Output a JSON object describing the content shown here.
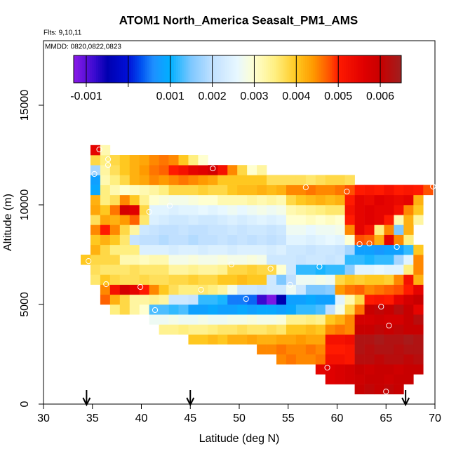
{
  "chart_data": {
    "type": "heatmap",
    "title": "ATOM1 North_America Seasalt_PM1_AMS",
    "subtitle": "Flts: 9,10,11",
    "annotation": "MMDD: 0820,0822,0823",
    "xlabel": "Latitude (deg N)",
    "ylabel": "Altitude (m)",
    "xlim": [
      30,
      70
    ],
    "ylim": [
      0,
      18240
    ],
    "xticks": [
      30,
      35,
      40,
      45,
      50,
      55,
      60,
      65,
      70
    ],
    "yticks": [
      0,
      5000,
      10000,
      15000
    ],
    "xbins": [
      33.8,
      34.8,
      35.8,
      36.8,
      37.8,
      38.8,
      39.8,
      40.8,
      41.8,
      42.8,
      43.8,
      44.8,
      45.8,
      46.8,
      47.8,
      48.8,
      49.8,
      50.8,
      51.8,
      52.8,
      53.8,
      54.8,
      55.8,
      56.8,
      57.8,
      58.8,
      59.8,
      60.8,
      61.8,
      62.8,
      63.8,
      64.8,
      65.8,
      66.8,
      67.8,
      68.8,
      69.8
    ],
    "ybins": [
      500,
      1000,
      1500,
      2000,
      2500,
      3000,
      3500,
      4000,
      4500,
      5000,
      5500,
      6000,
      6500,
      7000,
      7500,
      8000,
      8500,
      9000,
      9500,
      10000,
      10500,
      11000,
      11500,
      12000,
      12500,
      13000
    ],
    "z": [
      [
        null,
        null,
        null,
        null,
        null,
        null,
        null,
        null,
        null,
        null,
        null,
        null,
        null,
        null,
        null,
        null,
        null,
        null,
        null,
        null,
        null,
        null,
        null,
        null,
        null,
        null,
        null,
        null,
        0.006,
        0.0061,
        0.006,
        0.0061,
        0.006,
        null,
        null,
        null
      ],
      [
        null,
        null,
        null,
        null,
        null,
        null,
        null,
        null,
        null,
        null,
        null,
        null,
        null,
        null,
        null,
        null,
        null,
        null,
        null,
        null,
        null,
        null,
        null,
        null,
        null,
        0.0056,
        0.0057,
        0.0058,
        0.0059,
        0.006,
        0.006,
        0.0059,
        0.006,
        0.006,
        null,
        null
      ],
      [
        null,
        null,
        null,
        null,
        null,
        null,
        null,
        null,
        null,
        null,
        null,
        null,
        null,
        null,
        null,
        null,
        null,
        null,
        null,
        null,
        null,
        null,
        null,
        null,
        0.0055,
        0.0056,
        0.0057,
        0.0058,
        0.006,
        0.0059,
        0.006,
        0.006,
        0.0059,
        0.006,
        0.006,
        null
      ],
      [
        null,
        null,
        null,
        null,
        null,
        null,
        null,
        null,
        null,
        null,
        null,
        null,
        null,
        null,
        null,
        null,
        null,
        null,
        null,
        null,
        0.0045,
        0.0046,
        0.0045,
        0.0045,
        0.0046,
        0.0052,
        0.0052,
        0.0051,
        0.0062,
        0.0062,
        0.0061,
        0.0062,
        0.0062,
        0.0061,
        0.0062,
        null
      ],
      [
        null,
        null,
        null,
        null,
        null,
        null,
        null,
        null,
        null,
        null,
        null,
        null,
        null,
        null,
        null,
        null,
        null,
        null,
        0.0045,
        0.0045,
        0.0046,
        0.0045,
        0.0045,
        0.0046,
        0.0045,
        0.005,
        0.005,
        0.0051,
        0.0063,
        0.0062,
        0.0063,
        0.0063,
        0.0062,
        0.0063,
        0.0063,
        null
      ],
      [
        null,
        null,
        null,
        null,
        null,
        null,
        null,
        null,
        null,
        null,
        null,
        0.004,
        0.004,
        0.0041,
        0.004,
        0.0042,
        0.0042,
        0.0043,
        0.0042,
        0.0042,
        0.0043,
        0.0043,
        0.0044,
        0.0043,
        0.0043,
        0.0052,
        0.0052,
        0.0053,
        0.0063,
        0.0063,
        0.0064,
        0.0063,
        0.0063,
        0.0064,
        0.0063,
        null
      ],
      [
        null,
        null,
        null,
        null,
        null,
        null,
        null,
        null,
        0.0034,
        0.0034,
        0.0035,
        0.0034,
        0.0034,
        0.0035,
        0.0036,
        0.0036,
        0.0037,
        0.0036,
        0.0036,
        0.0037,
        0.0036,
        0.004,
        0.004,
        0.0041,
        0.004,
        0.0045,
        0.0046,
        0.0045,
        0.006,
        0.006,
        0.0061,
        0.006,
        0.0061,
        0.006,
        0.006,
        null
      ],
      [
        null,
        null,
        null,
        null,
        null,
        null,
        null,
        0.0027,
        0.0027,
        0.0028,
        0.0027,
        0.0027,
        0.0028,
        0.0027,
        0.0027,
        0.0028,
        0.0028,
        0.0029,
        0.0028,
        0.0028,
        0.0029,
        0.0034,
        0.0034,
        0.0035,
        0.0034,
        0.004,
        0.0042,
        0.0045,
        0.0058,
        0.0058,
        0.0059,
        0.0058,
        0.0058,
        0.006,
        0.0062,
        null
      ],
      [
        null,
        null,
        null,
        0.0035,
        0.0038,
        0.0033,
        0.003,
        0.0013,
        0.0013,
        0.0012,
        0.0013,
        0.0008,
        0.0008,
        0.0009,
        0.0008,
        0.0008,
        0.0009,
        0.0008,
        0.0009,
        0.0009,
        0.0008,
        0.0009,
        0.0012,
        0.0012,
        0.0013,
        0.002,
        0.0028,
        0.0038,
        0.0046,
        0.006,
        0.0061,
        0.006,
        0.0062,
        0.006,
        0.0055,
        null
      ],
      [
        null,
        null,
        0.0047,
        0.0042,
        0.0038,
        0.0033,
        0.0033,
        0.0034,
        0.0033,
        0.0022,
        0.0022,
        0.0021,
        0.0012,
        0.0012,
        0.0011,
        0.0005,
        0.0005,
        0.0004,
        -0.0008,
        -0.0012,
        -0.0005,
        0.0008,
        0.0008,
        0.0009,
        0.0008,
        0.0008,
        0.0025,
        0.0032,
        0.0038,
        0.005,
        0.0051,
        0.005,
        0.0055,
        0.0058,
        0.006,
        null
      ],
      [
        null,
        null,
        0.0045,
        0.0052,
        0.0058,
        0.0055,
        0.005,
        0.0045,
        0.004,
        0.0037,
        0.0035,
        0.0035,
        0.0036,
        0.0035,
        0.0033,
        0.0028,
        0.0022,
        0.0022,
        0.0021,
        0.0022,
        0.0022,
        0.0027,
        0.0022,
        0.0015,
        0.0015,
        0.0016,
        0.0044,
        0.0046,
        0.0047,
        0.0045,
        0.0046,
        0.0047,
        0.0048,
        0.005,
        0.0055,
        null
      ],
      [
        null,
        0.0036,
        0.004,
        0.0038,
        0.0037,
        0.0037,
        0.0038,
        0.0037,
        0.0037,
        0.0038,
        0.0038,
        0.0039,
        0.0038,
        0.0038,
        0.004,
        0.004,
        0.0041,
        0.004,
        0.004,
        0.0022,
        0.0015,
        0.002,
        0.0027,
        0.0027,
        0.0028,
        0.0027,
        0.0038,
        0.004,
        0.0039,
        0.004,
        0.004,
        0.0039,
        0.0045,
        0.0052,
        0.0042,
        null
      ],
      [
        null,
        0.0037,
        0.0036,
        0.0036,
        0.0036,
        0.0037,
        0.0036,
        0.0036,
        0.0036,
        0.0033,
        0.0033,
        0.0034,
        0.0033,
        0.0033,
        0.0034,
        0.0038,
        0.0038,
        0.0039,
        0.0038,
        0.0038,
        0.003,
        0.0022,
        0.0012,
        0.0012,
        0.0011,
        0.0012,
        0.0012,
        0.0016,
        0.0025,
        0.0025,
        0.0026,
        0.0025,
        0.0025,
        0.0035,
        0.0045,
        null
      ],
      [
        0.004,
        0.0038,
        0.0038,
        0.0038,
        0.0032,
        0.0032,
        0.0031,
        0.0032,
        0.0032,
        0.0028,
        0.0028,
        0.0029,
        0.0028,
        0.0028,
        0.0029,
        0.0028,
        0.0028,
        0.0029,
        0.0028,
        0.0022,
        0.0022,
        0.0022,
        0.0021,
        0.0022,
        0.0022,
        0.0021,
        0.0022,
        0.0012,
        0.0012,
        0.0011,
        0.0012,
        0.0012,
        0.0018,
        0.0025,
        0.0045,
        null
      ],
      [
        null,
        0.0042,
        0.0038,
        0.0035,
        0.0035,
        0.0035,
        0.0024,
        0.0024,
        0.0024,
        0.0023,
        0.0024,
        0.0024,
        0.0023,
        0.0024,
        0.0024,
        0.0023,
        0.0024,
        0.0024,
        0.0024,
        0.0023,
        0.0024,
        0.0022,
        0.0022,
        0.0021,
        0.0022,
        0.0022,
        0.0021,
        0.0018,
        0.0008,
        0.0008,
        0.0007,
        0.0008,
        0.0008,
        0.0012,
        0.004,
        null
      ],
      [
        null,
        0.004,
        0.0042,
        0.004,
        0.0036,
        0.0021,
        0.002,
        0.002,
        0.0019,
        0.002,
        0.002,
        0.0019,
        0.002,
        0.002,
        0.0021,
        0.002,
        0.0021,
        0.002,
        0.0021,
        0.002,
        0.0021,
        0.0025,
        0.0025,
        0.0024,
        0.0025,
        0.0026,
        0.0025,
        0.003,
        0.0048,
        0.0047,
        0.0042,
        0.0055,
        0.0045,
        0.0035,
        null,
        null
      ],
      [
        null,
        0.0045,
        0.005,
        0.0045,
        0.0038,
        0.0033,
        0.0022,
        0.0021,
        0.002,
        0.002,
        0.0021,
        0.002,
        0.002,
        0.0021,
        0.0021,
        0.0022,
        0.0021,
        0.0022,
        0.0022,
        0.0021,
        0.0022,
        0.0027,
        0.0027,
        0.0026,
        0.0027,
        0.0027,
        0.0028,
        0.0045,
        0.0055,
        0.0052,
        0.0035,
        0.0045,
        0.0015,
        0.0042,
        null,
        null
      ],
      [
        null,
        0.0037,
        0.0043,
        0.0042,
        0.0044,
        0.0047,
        0.0036,
        0.0024,
        0.0023,
        0.0022,
        0.0022,
        0.0023,
        0.0022,
        0.0022,
        0.0023,
        0.0024,
        0.0023,
        0.0024,
        0.0025,
        0.0024,
        0.0025,
        0.003,
        0.003,
        0.0031,
        0.003,
        0.0031,
        0.003,
        0.005,
        0.0055,
        0.0056,
        0.0055,
        0.005,
        0.0032,
        0.0042,
        0.0033,
        null
      ],
      [
        null,
        0.0043,
        0.004,
        0.0046,
        0.0058,
        0.0056,
        0.0038,
        0.0025,
        0.0025,
        0.0024,
        0.0025,
        0.0025,
        0.0026,
        0.0025,
        0.0026,
        0.0027,
        0.0026,
        0.0027,
        0.0028,
        0.0027,
        0.0028,
        0.0032,
        0.0033,
        0.0034,
        0.0035,
        0.0036,
        0.0036,
        0.0052,
        0.0055,
        0.0056,
        0.0055,
        0.0055,
        0.0052,
        0.0045,
        0.004,
        null
      ],
      [
        null,
        0.0042,
        0.0035,
        0.0037,
        0.0045,
        0.004,
        0.0034,
        0.003,
        0.0029,
        0.0028,
        0.0028,
        0.0029,
        0.003,
        0.003,
        0.0032,
        0.0032,
        0.0032,
        0.0033,
        0.0032,
        0.0033,
        0.0032,
        0.0038,
        0.004,
        0.0041,
        0.0042,
        0.0041,
        0.0042,
        0.005,
        0.0055,
        0.0054,
        0.0056,
        0.0055,
        0.0054,
        0.0055,
        0.0042,
        null
      ],
      [
        null,
        0.0009,
        0.0035,
        0.0032,
        0.003,
        0.0031,
        0.0032,
        0.0033,
        0.0035,
        0.0038,
        0.0038,
        0.0038,
        0.0039,
        0.0038,
        0.0038,
        0.004,
        0.0041,
        0.0041,
        0.0042,
        0.0041,
        0.0042,
        0.0045,
        0.0045,
        0.0046,
        0.0045,
        0.0045,
        0.0046,
        0.0048,
        0.005,
        0.0051,
        0.005,
        0.0052,
        0.005,
        0.0051,
        0.005,
        0.0048
      ],
      [
        null,
        0.0008,
        0.0032,
        0.0035,
        0.0038,
        0.0042,
        0.0043,
        0.0045,
        0.0044,
        0.0045,
        0.0046,
        0.0045,
        0.0044,
        0.0043,
        0.004,
        0.004,
        0.004,
        0.004,
        0.004,
        0.0037,
        0.0037,
        0.0037,
        0.0037,
        0.0036,
        0.0037,
        0.0038,
        0.0038,
        0.0037,
        null,
        null,
        null,
        null,
        null,
        null,
        null,
        null
      ],
      [
        null,
        0.0018,
        0.0033,
        0.0037,
        0.004,
        0.0042,
        0.0044,
        0.0046,
        0.0047,
        0.005,
        0.0052,
        0.0055,
        0.0056,
        0.0058,
        0.0052,
        0.0045,
        0.0038,
        0.003,
        0.0033,
        null,
        null,
        null,
        null,
        null,
        null,
        null,
        null,
        null,
        null,
        null,
        null,
        null,
        null,
        null,
        null,
        null
      ],
      [
        null,
        0.0038,
        0.0035,
        0.0038,
        0.004,
        0.0042,
        0.0043,
        0.0045,
        0.0046,
        0.0045,
        0.004,
        0.0035,
        0.003,
        null,
        null,
        null,
        null,
        null,
        null,
        null,
        null,
        null,
        null,
        null,
        null,
        null,
        null,
        null,
        null,
        null,
        null,
        null,
        null,
        null,
        null,
        null
      ],
      [
        null,
        0.0055,
        0.0032,
        null,
        null,
        null,
        null,
        null,
        null,
        null,
        null,
        null,
        null,
        null,
        null,
        null,
        null,
        null,
        null,
        null,
        null,
        null,
        null,
        null,
        null,
        null,
        null,
        null,
        null,
        null,
        null,
        null,
        null,
        null,
        null,
        null
      ]
    ],
    "colorbar_lim": [
      -0.0013,
      0.0065
    ],
    "colorbar_ticks": [
      -0.001,
      {
        "value": 0,
        "label": null
      },
      0.001,
      0.002,
      0.003,
      0.004,
      0.005,
      0.006
    ],
    "colorscale": [
      [
        -0.0013,
        "#8b1ae8"
      ],
      [
        -0.0008,
        "#3a0ad0"
      ],
      [
        -0.0005,
        "#0000b0"
      ],
      [
        0,
        "#0010d8"
      ],
      [
        0.0003,
        "#0050f0"
      ],
      [
        0.0006,
        "#1e90ff"
      ],
      [
        0.001,
        "#00b0ff"
      ],
      [
        0.0015,
        "#7ec8ff"
      ],
      [
        0.002,
        "#c0e0ff"
      ],
      [
        0.0026,
        "#e8f8ff"
      ],
      [
        0.003,
        "#ffffd0"
      ],
      [
        0.0035,
        "#ffef80"
      ],
      [
        0.004,
        "#ffc820"
      ],
      [
        0.0044,
        "#ff9a00"
      ],
      [
        0.0048,
        "#ff5000"
      ],
      [
        0.005,
        "#ff1a00"
      ],
      [
        0.0056,
        "#e00000"
      ],
      [
        0.006,
        "#c80000"
      ],
      [
        0.0065,
        "#a02020"
      ]
    ],
    "points": {
      "color": "#ffffff",
      "x": [
        35.7,
        36.6,
        36.6,
        35.2,
        47.3,
        40.8,
        42.9,
        56.8,
        61.0,
        69.8,
        62.3,
        63.3,
        66.1,
        34.6,
        49.2,
        53.2,
        58.2,
        36.4,
        39.9,
        46.1,
        55.2,
        50.7,
        41.4,
        64.5,
        65.3,
        59.0,
        65.0
      ],
      "y": [
        12780,
        12290,
        12000,
        11550,
        11830,
        9650,
        9960,
        10880,
        10670,
        10920,
        8030,
        8060,
        7890,
        7180,
        7010,
        6800,
        6900,
        6020,
        5880,
        5740,
        5990,
        5280,
        4720,
        4890,
        3940,
        1830,
        630
      ]
    },
    "arrows_x": [
      34.4,
      45,
      67
    ]
  }
}
